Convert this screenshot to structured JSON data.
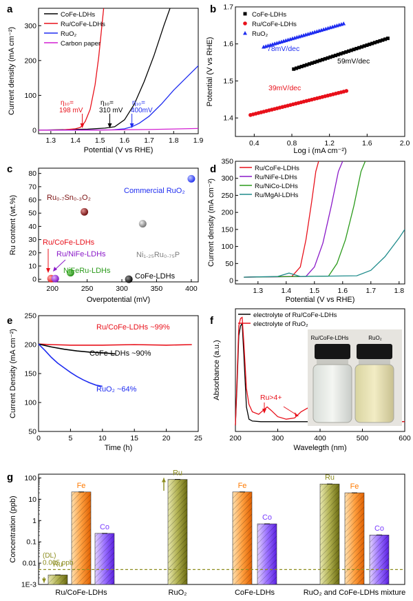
{
  "colors": {
    "black": "#000000",
    "red": "#e8101a",
    "blue": "#1e2cf0",
    "magenta": "#d21fd2",
    "purple": "#8a19c8",
    "green": "#2a9a1a",
    "teal": "#1f8c8c",
    "gray": "#7d7d7d",
    "maroon": "#7a1010",
    "olive": "#8c8c1e",
    "orange": "#ff7a00",
    "violet": "#7a3dff"
  },
  "chart_data": [
    {
      "panel": "a",
      "type": "line",
      "xlabel": "Potential (V vs RHE)",
      "ylabel": "Current density (mA cm⁻²)",
      "xlim": [
        1.25,
        1.9
      ],
      "ylim": [
        -10,
        350
      ],
      "xticks": [
        "1.3",
        "1.4",
        "1.5",
        "1.6",
        "1.7",
        "1.8",
        "1.9"
      ],
      "yticks": [
        "0",
        "100",
        "200",
        "300"
      ],
      "legend": "top-left",
      "series": [
        {
          "name": "CoFe-LDHs",
          "color": "black",
          "x": [
            1.25,
            1.45,
            1.52,
            1.56,
            1.6,
            1.64,
            1.68,
            1.72,
            1.76,
            1.785
          ],
          "y": [
            0,
            3,
            6,
            10,
            30,
            75,
            140,
            215,
            300,
            350
          ]
        },
        {
          "name": "Ru/CoFe-LDHs",
          "color": "red",
          "x": [
            1.25,
            1.35,
            1.4,
            1.42,
            1.44,
            1.46,
            1.48,
            1.495,
            1.505,
            1.515
          ],
          "y": [
            0,
            1,
            4,
            8,
            25,
            60,
            130,
            210,
            280,
            350
          ]
        },
        {
          "name": "RuO₂",
          "color": "blue",
          "x": [
            1.25,
            1.55,
            1.6,
            1.63,
            1.66,
            1.7,
            1.75,
            1.8,
            1.85,
            1.9
          ],
          "y": [
            0,
            1,
            4,
            10,
            20,
            40,
            75,
            115,
            150,
            185
          ]
        },
        {
          "name": "Carbon paper",
          "color": "magenta",
          "x": [
            1.25,
            1.5,
            1.7,
            1.9
          ],
          "y": [
            0,
            0.5,
            2,
            5
          ]
        }
      ],
      "annotations": [
        {
          "t1": "η₁₀=",
          "t2": "198 mV",
          "color": "red"
        },
        {
          "t1": "η₁₀=",
          "t2": "310 mV",
          "color": "black"
        },
        {
          "t1": "η₁₀=",
          "t2": "400mV",
          "color": "blue"
        }
      ]
    },
    {
      "panel": "b",
      "type": "scatter",
      "xlabel": "Log i (mA cm⁻²)",
      "ylabel": "Potential (V vs RHE)",
      "xlim": [
        0.2,
        2.0
      ],
      "ylim": [
        1.35,
        1.7
      ],
      "xticks": [
        "0.4",
        "0.8",
        "1.2",
        "1.6",
        "2.0"
      ],
      "yticks": [
        "1.4",
        "1.5",
        "1.6",
        "1.7"
      ],
      "legend": "top-left",
      "series": [
        {
          "name": "CoFe-LDHs",
          "color": "black",
          "x_range": [
            0.82,
            1.82
          ],
          "y_range": [
            1.532,
            1.615
          ],
          "label": "59mV/dec"
        },
        {
          "name": "Ru/CoFe-LDHs",
          "color": "red",
          "x_range": [
            0.36,
            1.38
          ],
          "y_range": [
            1.408,
            1.473
          ],
          "label": "39mV/dec"
        },
        {
          "name": "RuO₂",
          "color": "blue",
          "x_range": [
            0.5,
            1.35
          ],
          "y_range": [
            1.592,
            1.655
          ],
          "label": "78mV/dec"
        }
      ]
    },
    {
      "panel": "c",
      "type": "scatter",
      "xlabel": "Overpotential (mV)",
      "ylabel": "Ru content (wt.%)",
      "xlim": [
        180,
        410
      ],
      "ylim": [
        -2,
        84
      ],
      "xticks": [
        "200",
        "250",
        "300",
        "350",
        "400"
      ],
      "yticks": [
        "0",
        "10",
        "20",
        "30",
        "40",
        "50",
        "60",
        "70",
        "80"
      ],
      "points": [
        {
          "name": "Commercial RuO₂",
          "x": 400,
          "y": 76,
          "color": "blue"
        },
        {
          "name": "Ru₀.₇Sn₀.₃O₂",
          "x": 246,
          "y": 51,
          "color": "maroon"
        },
        {
          "name": "Ni₁.₂₅Ru₀.₇₅P",
          "x": 330,
          "y": 42,
          "color": "gray"
        },
        {
          "name": "Ru/CoFe-LDHs",
          "x": 198,
          "y": 0.5,
          "color": "red"
        },
        {
          "name": "Ru/NiFe-LDHs",
          "x": 204,
          "y": 0.5,
          "color": "purple"
        },
        {
          "name": "NiFeRu-LDHs",
          "x": 226,
          "y": 5,
          "color": "green"
        },
        {
          "name": "CoFe-LDHs",
          "x": 310,
          "y": 0,
          "color": "black"
        }
      ]
    },
    {
      "panel": "d",
      "type": "line",
      "xlabel": "Potential (V vs RHE)",
      "ylabel": "Current density (mA cm⁻²)",
      "xlim": [
        1.22,
        1.82
      ],
      "ylim": [
        -10,
        350
      ],
      "xticks": [
        "1.3",
        "1.4",
        "1.5",
        "1.6",
        "1.7",
        "1.8"
      ],
      "yticks": [
        "0",
        "50",
        "100",
        "150",
        "200",
        "250",
        "300",
        "350"
      ],
      "legend": "top-left",
      "series": [
        {
          "name": "Ru/CoFe-LDHs",
          "color": "red",
          "x": [
            1.25,
            1.42,
            1.45,
            1.47,
            1.49,
            1.505,
            1.515
          ],
          "y": [
            10,
            12,
            40,
            120,
            230,
            320,
            350
          ]
        },
        {
          "name": "Ru/NiFe-LDHs",
          "color": "purple",
          "x": [
            1.25,
            1.47,
            1.5,
            1.53,
            1.56,
            1.585,
            1.6
          ],
          "y": [
            10,
            12,
            40,
            110,
            220,
            320,
            350
          ]
        },
        {
          "name": "Ru/NiCo-LDHs",
          "color": "green",
          "x": [
            1.25,
            1.55,
            1.58,
            1.61,
            1.64,
            1.665,
            1.68
          ],
          "y": [
            10,
            13,
            50,
            120,
            220,
            320,
            350
          ]
        },
        {
          "name": "Ru/MgAl-LDHs",
          "color": "teal",
          "x": [
            1.25,
            1.37,
            1.41,
            1.45,
            1.65,
            1.7,
            1.75,
            1.8,
            1.82
          ],
          "y": [
            10,
            12,
            22,
            12,
            14,
            30,
            70,
            125,
            150
          ]
        }
      ]
    },
    {
      "panel": "e",
      "type": "line",
      "xlabel": "Time (h)",
      "ylabel": "Current Density (mA cm⁻²)",
      "xlim": [
        0,
        25
      ],
      "ylim": [
        50,
        250
      ],
      "xticks": [
        "0",
        "5",
        "10",
        "15",
        "20",
        "25"
      ],
      "yticks": [
        "50",
        "100",
        "150",
        "200",
        "250"
      ],
      "series": [
        {
          "name": "Ru/CoFe-LDHs",
          "color": "red",
          "label": "Ru/CoFe-LDHs   ~99%",
          "x": [
            0,
            2,
            5,
            10,
            15,
            20,
            24
          ],
          "y": [
            201,
            200,
            199,
            199,
            200,
            199,
            200
          ]
        },
        {
          "name": "CoFe-LDHs",
          "color": "black",
          "label": "CoFe-LDHs  ~90%",
          "x": [
            0,
            2,
            4,
            6,
            8,
            10,
            12
          ],
          "y": [
            201,
            196,
            192,
            189,
            187,
            186,
            184
          ]
        },
        {
          "name": "RuO₂",
          "color": "blue",
          "label": "RuO₂  ~64%",
          "x": [
            0,
            1,
            2,
            3,
            4,
            5,
            6,
            7,
            8,
            9,
            10
          ],
          "y": [
            201,
            190,
            178,
            168,
            160,
            152,
            145,
            139,
            134,
            130,
            128
          ]
        }
      ]
    },
    {
      "panel": "f",
      "type": "line",
      "xlabel": "Wavelegth (nm)",
      "ylabel": "Absorbance (a.u.)",
      "xlim": [
        200,
        600
      ],
      "ylim": [
        0,
        1
      ],
      "xticks": [
        "200",
        "300",
        "400",
        "500",
        "600"
      ],
      "legend": "top-left",
      "series": [
        {
          "name": "electrolyte of Ru/CoFe-LDHs",
          "color": "black",
          "x": [
            200,
            204,
            208,
            212,
            216,
            220,
            226,
            232,
            240,
            260,
            300,
            400,
            600
          ],
          "y": [
            0.05,
            0.4,
            0.78,
            0.86,
            0.88,
            0.62,
            0.2,
            0.1,
            0.085,
            0.08,
            0.08,
            0.08,
            0.08
          ]
        },
        {
          "name": "electrolyte of RuO₂",
          "color": "red",
          "x": [
            200,
            204,
            208,
            212,
            216,
            220,
            226,
            232,
            240,
            255,
            265,
            275,
            285,
            300,
            320,
            340,
            355,
            370,
            380,
            390,
            400,
            420,
            450,
            500,
            600
          ],
          "y": [
            0.05,
            0.45,
            0.86,
            0.92,
            0.93,
            0.72,
            0.35,
            0.22,
            0.16,
            0.14,
            0.17,
            0.2,
            0.17,
            0.12,
            0.1,
            0.11,
            0.16,
            0.19,
            0.16,
            0.12,
            0.1,
            0.09,
            0.08,
            0.08,
            0.08
          ]
        }
      ],
      "annotation": "Ru>4+",
      "inset_labels": [
        "Ru/CoFe-LDHs",
        "RuO₂"
      ]
    },
    {
      "panel": "g",
      "type": "bar",
      "ylabel": "Concentration (ppb)",
      "yscale": "log",
      "ylim": [
        0.001,
        150
      ],
      "yticks": [
        "1E-3",
        "0.01",
        "0.1",
        "1",
        "10",
        "100"
      ],
      "groups": [
        "Ru/CoFe-LDHs",
        "RuO₂",
        "CoFe-LDHs",
        "RuO₂ and CoFe-LDHs mixture"
      ],
      "bars": [
        {
          "group": 0,
          "element": "Ru",
          "value": 0.0028,
          "color": "olive"
        },
        {
          "group": 0,
          "element": "Fe",
          "value": 22,
          "color": "orange"
        },
        {
          "group": 0,
          "element": "Co",
          "value": 0.25,
          "color": "violet"
        },
        {
          "group": 1,
          "element": "Ru",
          "value": 85,
          "color": "olive"
        },
        {
          "group": 2,
          "element": "Fe",
          "value": 22,
          "color": "orange"
        },
        {
          "group": 2,
          "element": "Co",
          "value": 0.7,
          "color": "violet"
        },
        {
          "group": 3,
          "element": "Ru",
          "value": 52,
          "color": "olive"
        },
        {
          "group": 3,
          "element": "Fe",
          "value": 20,
          "color": "orange"
        },
        {
          "group": 3,
          "element": "Co",
          "value": 0.21,
          "color": "violet"
        }
      ],
      "detection_limit": {
        "label1": "(DL)",
        "label2": "0.005 ppb",
        "value": 0.005
      }
    }
  ]
}
